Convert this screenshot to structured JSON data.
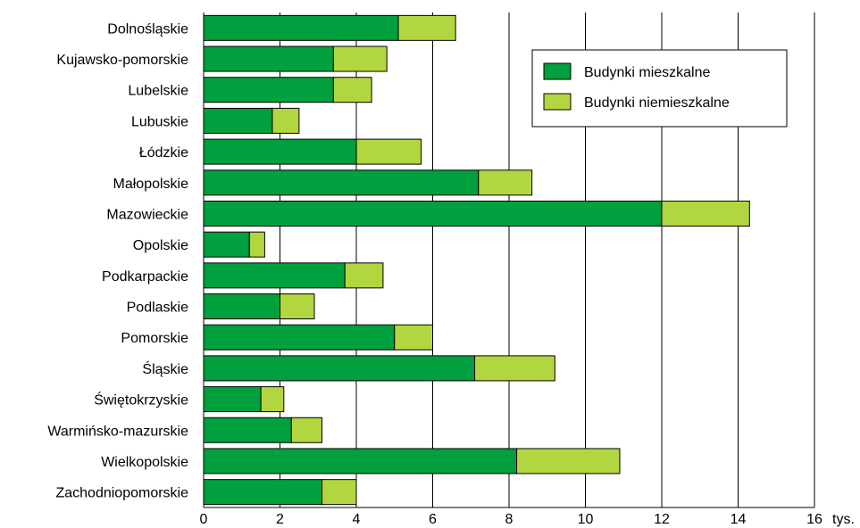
{
  "chart_data": {
    "type": "bar",
    "orientation": "horizontal",
    "stacked": true,
    "categories": [
      "Dolnośląskie",
      "Kujawsko-pomorskie",
      "Lubelskie",
      "Lubuskie",
      "Łódzkie",
      "Małopolskie",
      "Mazowieckie",
      "Opolskie",
      "Podkarpackie",
      "Podlaskie",
      "Pomorskie",
      "Śląskie",
      "Świętokrzyskie",
      "Warmińsko-mazurskie",
      "Wielkopolskie",
      "Zachodniopomorskie"
    ],
    "series": [
      {
        "name": "Budynki mieszkalne",
        "color": "#00a03e",
        "values": [
          5.1,
          3.4,
          3.4,
          1.8,
          4.0,
          7.2,
          12.0,
          1.2,
          3.7,
          2.0,
          5.0,
          7.1,
          1.5,
          2.3,
          8.2,
          3.1
        ]
      },
      {
        "name": "Budynki niemieszkalne",
        "color": "#b2d63f",
        "values": [
          1.5,
          1.4,
          1.0,
          0.7,
          1.7,
          1.4,
          2.3,
          0.4,
          1.0,
          0.9,
          1.0,
          2.1,
          0.6,
          0.8,
          2.7,
          0.9
        ]
      }
    ],
    "xlim": [
      0,
      16
    ],
    "xticks": [
      "0",
      "2",
      "4",
      "6",
      "8",
      "10",
      "12",
      "14",
      "16"
    ],
    "unit_label": "tys.",
    "grid": "vertical",
    "legend_position": "top-right"
  }
}
